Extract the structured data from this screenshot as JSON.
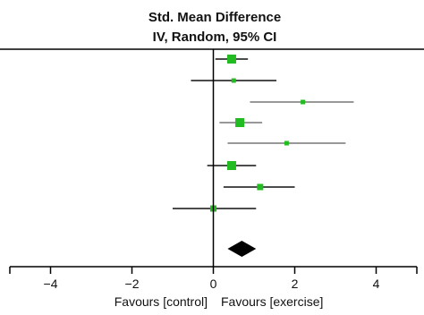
{
  "chart_data": {
    "type": "forest",
    "title": "Std. Mean Difference",
    "subtitle": "IV, Random, 95% CI",
    "xlim": [
      -5,
      5
    ],
    "x_ticks": [
      -4,
      -2,
      0,
      2,
      4
    ],
    "x_tick_labels": [
      "−4",
      "−2",
      "0",
      "2",
      "4"
    ],
    "favours_left": "Favours [control]",
    "favours_right": "Favours [exercise]",
    "studies": [
      {
        "est": 0.45,
        "lo": 0.05,
        "hi": 0.85,
        "weight": "large",
        "line_color": "#111111"
      },
      {
        "est": 0.5,
        "lo": -0.55,
        "hi": 1.55,
        "weight": "small",
        "line_color": "#111111"
      },
      {
        "est": 2.2,
        "lo": 0.9,
        "hi": 3.45,
        "weight": "small",
        "line_color": "#777777"
      },
      {
        "est": 0.65,
        "lo": 0.15,
        "hi": 1.2,
        "weight": "large",
        "line_color": "#777777"
      },
      {
        "est": 1.8,
        "lo": 0.35,
        "hi": 3.25,
        "weight": "small",
        "line_color": "#777777"
      },
      {
        "est": 0.45,
        "lo": -0.15,
        "hi": 1.05,
        "weight": "large",
        "line_color": "#111111"
      },
      {
        "est": 1.15,
        "lo": 0.25,
        "hi": 2.0,
        "weight": "medium",
        "line_color": "#111111"
      },
      {
        "est": 0.0,
        "lo": -1.0,
        "hi": 1.05,
        "weight": "medium",
        "line_color": "#111111"
      }
    ],
    "pooled": {
      "est": 0.7,
      "lo": 0.35,
      "hi": 1.05
    },
    "colors": {
      "marker": "#22bb22",
      "diamond": "#000000",
      "axis": "#000000"
    }
  }
}
